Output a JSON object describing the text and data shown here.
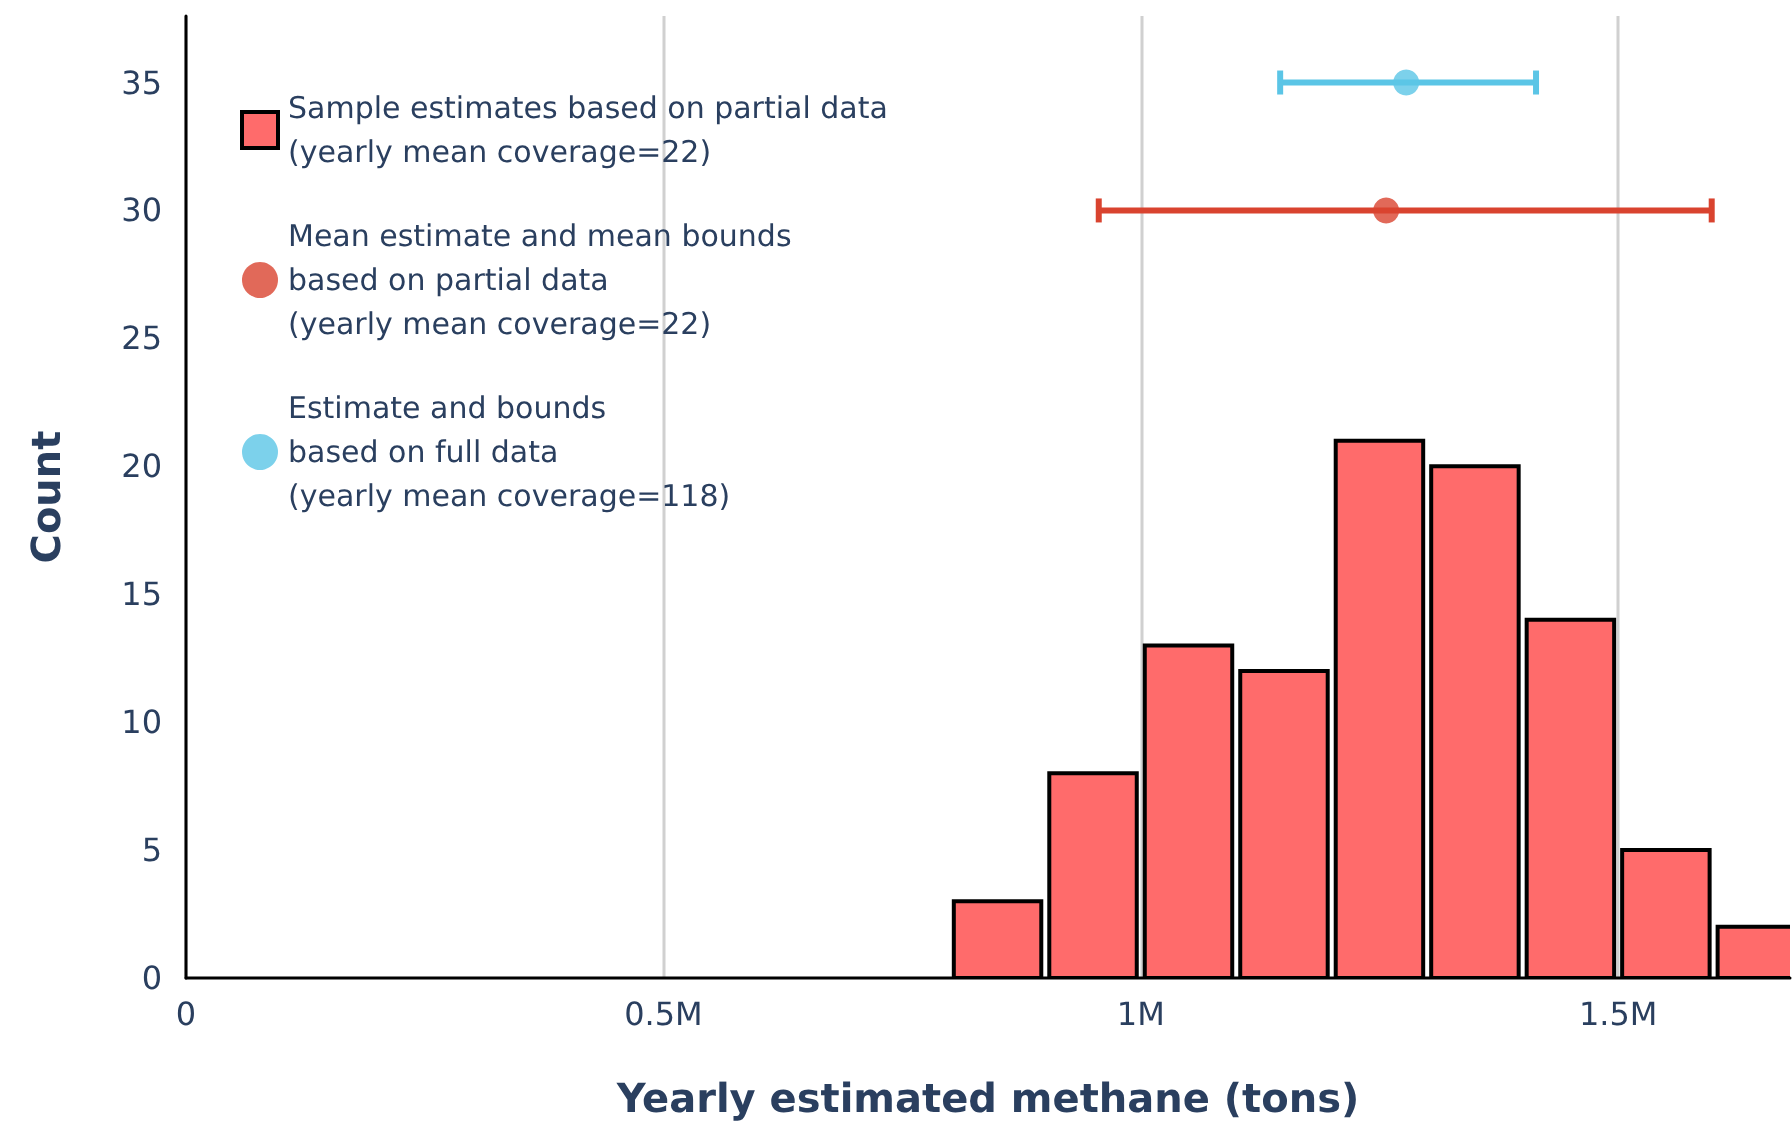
{
  "chart_data": {
    "type": "histogram",
    "xlabel": "Yearly estimated methane (tons)",
    "ylabel": "Count",
    "xlim": [
      0,
      1680000
    ],
    "ylim": [
      0,
      37.6
    ],
    "xticks": [
      {
        "value": 0,
        "label": "0"
      },
      {
        "value": 500000,
        "label": "0.5M"
      },
      {
        "value": 1000000,
        "label": "1M"
      },
      {
        "value": 1500000,
        "label": "1.5M"
      }
    ],
    "yticks": [
      0,
      5,
      10,
      15,
      20,
      25,
      30,
      35
    ],
    "grid": "x",
    "legend": "top left",
    "series": [
      {
        "name": "Sample estimates based on partial data\n(yearly mean coverage=22)",
        "color": "#ff6b6b",
        "bins": [
          800000,
          900000,
          1000000,
          1100000,
          1200000,
          1300000,
          1400000,
          1500000,
          1600000,
          1700000
        ],
        "values": [
          3,
          8,
          13,
          12,
          21,
          20,
          14,
          5,
          2
        ]
      },
      {
        "type": "scatter",
        "name": "Mean estimate and mean bounds\nbased on partial data\n(yearly mean coverage=22)",
        "color": "#d9432f",
        "x": [
          1257000
        ],
        "values": [
          30
        ],
        "xerrors": [
          [
            956000,
            1598000
          ]
        ]
      },
      {
        "type": "scatter",
        "name": "Estimate and bounds\nbased on full data\n(yearly mean coverage=118)",
        "color": "#5bc5e6",
        "x": [
          1278000
        ],
        "values": [
          35
        ],
        "xerrors": [
          [
            1146000,
            1414000
          ]
        ]
      }
    ]
  }
}
